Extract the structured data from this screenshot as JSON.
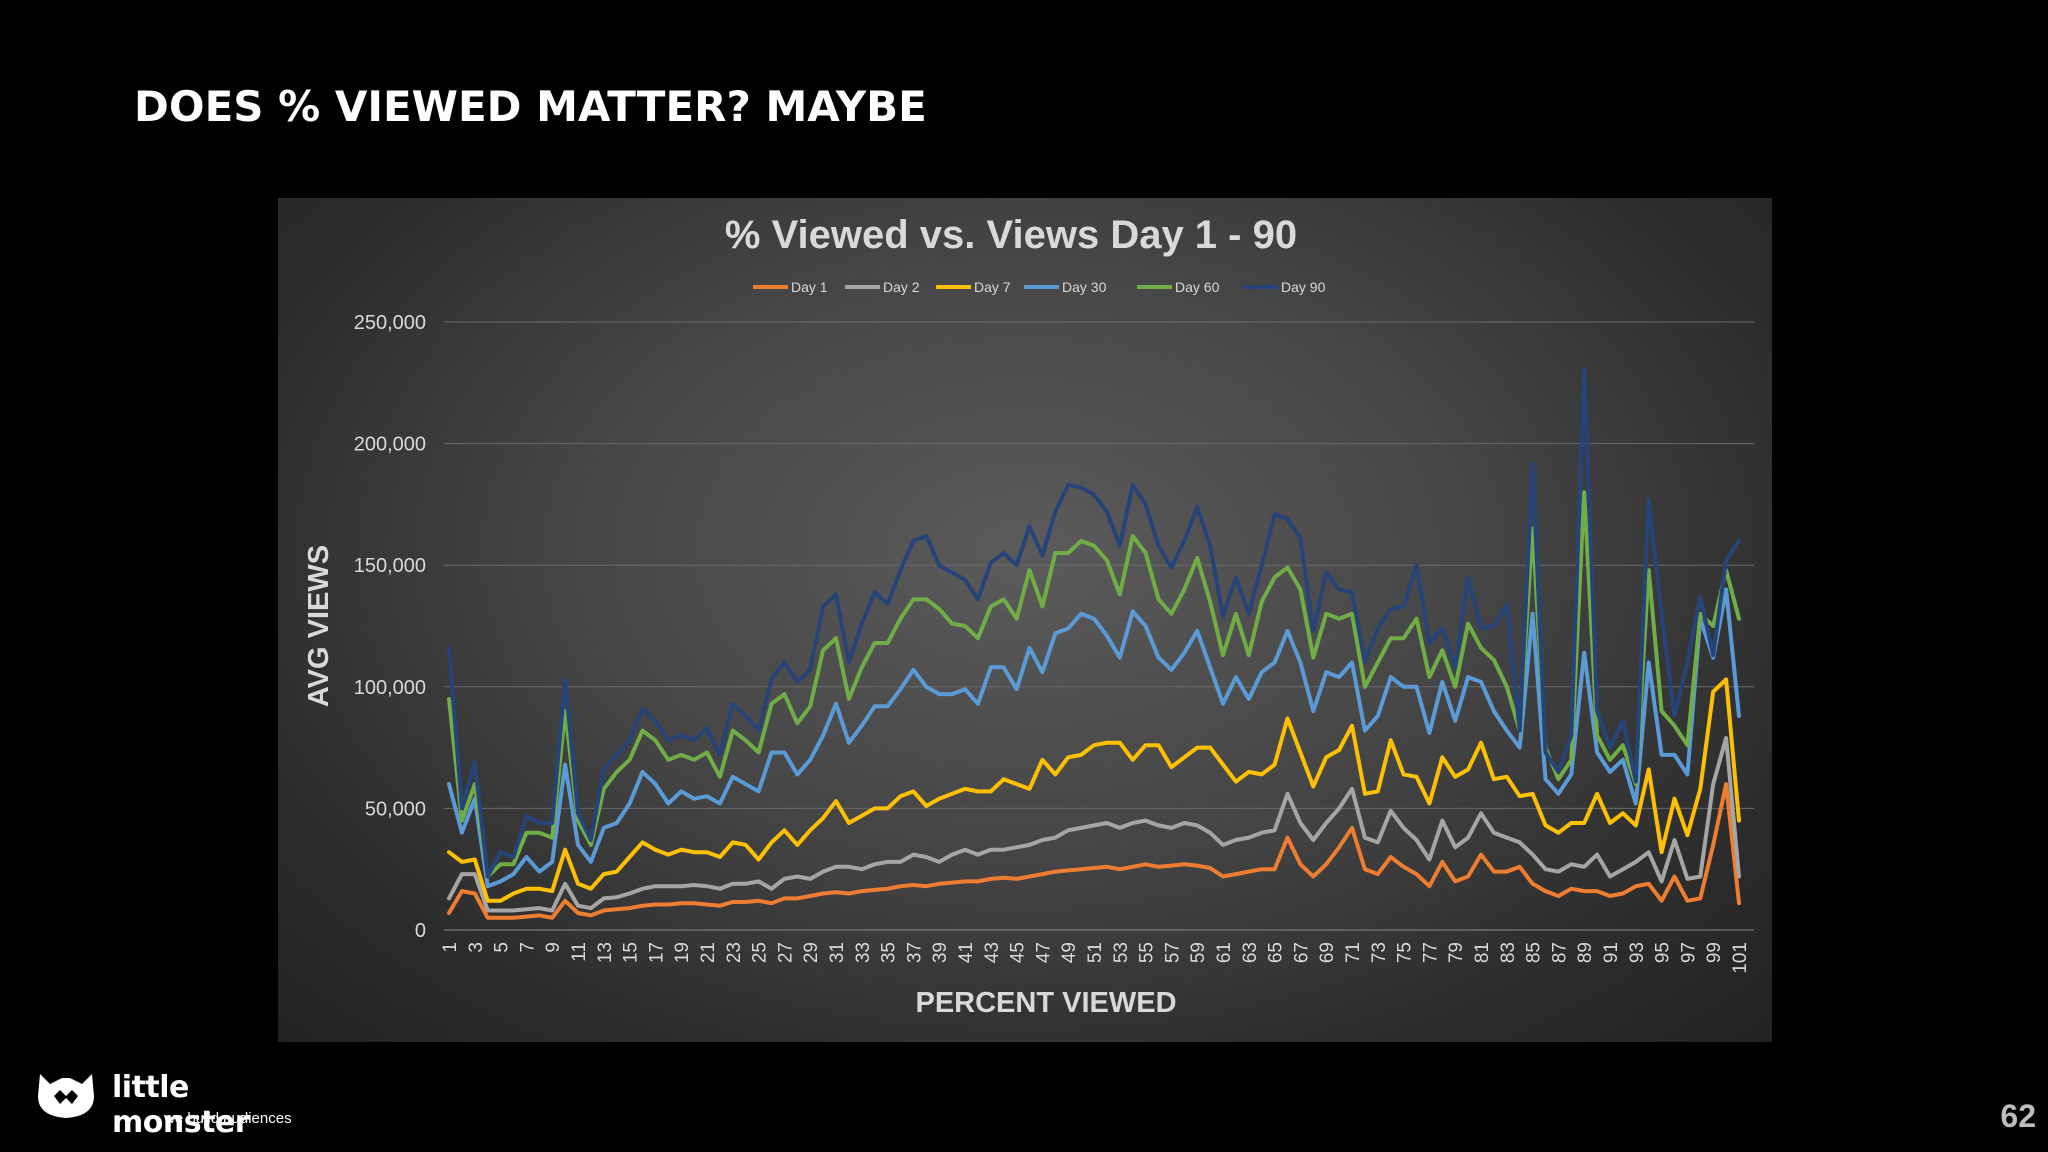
{
  "slide": {
    "title": "DOES % VIEWED MATTER? MAYBE",
    "page_number": "62"
  },
  "branding": {
    "name": "little monster",
    "tagline": "we build audiences"
  },
  "chart_data": {
    "type": "line",
    "title": "% Viewed vs. Views Day 1 - 90",
    "xlabel": "PERCENT VIEWED",
    "ylabel": "AVG VIEWS",
    "ylim": [
      0,
      250000
    ],
    "yticks": [
      0,
      50000,
      100000,
      150000,
      200000,
      250000
    ],
    "ytick_labels": [
      "0",
      "50,000",
      "100,000",
      "150,000",
      "200,000",
      "250,000"
    ],
    "x": [
      1,
      2,
      3,
      4,
      5,
      6,
      7,
      8,
      9,
      10,
      11,
      12,
      13,
      14,
      15,
      16,
      17,
      18,
      19,
      20,
      21,
      22,
      23,
      24,
      25,
      26,
      27,
      28,
      29,
      30,
      31,
      32,
      33,
      34,
      35,
      36,
      37,
      38,
      39,
      40,
      41,
      42,
      43,
      44,
      45,
      46,
      47,
      48,
      49,
      50,
      51,
      52,
      53,
      54,
      55,
      56,
      57,
      58,
      59,
      60,
      61,
      62,
      63,
      64,
      65,
      66,
      67,
      68,
      69,
      70,
      71,
      72,
      73,
      74,
      75,
      76,
      77,
      78,
      79,
      80,
      81,
      82,
      83,
      84,
      85,
      86,
      87,
      88,
      89,
      90,
      91,
      92,
      93,
      94,
      95,
      96,
      97,
      98,
      99,
      100,
      101
    ],
    "xtick_labels": [
      "1",
      "3",
      "5",
      "7",
      "9",
      "11",
      "13",
      "15",
      "17",
      "19",
      "21",
      "23",
      "25",
      "27",
      "29",
      "31",
      "33",
      "35",
      "37",
      "39",
      "41",
      "43",
      "45",
      "47",
      "49",
      "51",
      "53",
      "55",
      "57",
      "59",
      "61",
      "63",
      "65",
      "67",
      "69",
      "71",
      "73",
      "75",
      "77",
      "79",
      "81",
      "83",
      "85",
      "87",
      "89",
      "91",
      "93",
      "95",
      "97",
      "99",
      "101"
    ],
    "grid": true,
    "legend_position": "top",
    "series": [
      {
        "name": "Day 1",
        "color": "#ed7d31",
        "values": [
          7000,
          16000,
          15000,
          5000,
          5000,
          5000,
          5500,
          6000,
          5000,
          12000,
          7000,
          6000,
          8000,
          8500,
          9000,
          10000,
          10500,
          10500,
          11000,
          11000,
          10500,
          10000,
          11500,
          11500,
          12000,
          11000,
          13000,
          13000,
          14000,
          15000,
          15500,
          15000,
          16000,
          16500,
          17000,
          18000,
          18500,
          18000,
          19000,
          19500,
          20000,
          20000,
          21000,
          21500,
          21000,
          22000,
          23000,
          24000,
          24500,
          25000,
          25500,
          26000,
          25000,
          26000,
          27000,
          26000,
          26500,
          27000,
          26500,
          25500,
          22000,
          23000,
          24000,
          25000,
          25000,
          38000,
          27000,
          22000,
          27000,
          34000,
          42000,
          25000,
          23000,
          30000,
          26000,
          23000,
          18000,
          28000,
          20000,
          22000,
          31000,
          24000,
          24000,
          26000,
          19000,
          16000,
          14000,
          17000,
          16000,
          16000,
          14000,
          15000,
          18000,
          19000,
          12000,
          22000,
          12000,
          13000,
          35000,
          60000,
          11000
        ]
      },
      {
        "name": "Day 2",
        "color": "#a5a5a5",
        "values": [
          13000,
          23000,
          23000,
          8000,
          8000,
          8000,
          8500,
          9000,
          8000,
          19000,
          10000,
          9000,
          13000,
          13500,
          15000,
          17000,
          18000,
          18000,
          18000,
          18500,
          18000,
          17000,
          19000,
          19000,
          20000,
          17000,
          21000,
          22000,
          21000,
          24000,
          26000,
          26000,
          25000,
          27000,
          28000,
          28000,
          31000,
          30000,
          28000,
          31000,
          33000,
          31000,
          33000,
          33000,
          34000,
          35000,
          37000,
          38000,
          41000,
          42000,
          43000,
          44000,
          42000,
          44000,
          45000,
          43000,
          42000,
          44000,
          43000,
          40000,
          35000,
          37000,
          38000,
          40000,
          41000,
          56000,
          44000,
          37000,
          44000,
          50000,
          58000,
          38000,
          36000,
          49000,
          42000,
          37000,
          29000,
          45000,
          34000,
          38000,
          48000,
          40000,
          38000,
          36000,
          31000,
          25000,
          24000,
          27000,
          26000,
          31000,
          22000,
          25000,
          28000,
          32000,
          20000,
          37000,
          21000,
          22000,
          60000,
          79000,
          22000
        ]
      },
      {
        "name": "Day 7",
        "color": "#ffc000",
        "values": [
          32000,
          28000,
          29000,
          12000,
          12000,
          15000,
          17000,
          17000,
          16000,
          33000,
          19000,
          17000,
          23000,
          24000,
          30000,
          36000,
          33000,
          31000,
          33000,
          32000,
          32000,
          30000,
          36000,
          35000,
          29000,
          36000,
          41000,
          35000,
          41000,
          46000,
          53000,
          44000,
          47000,
          50000,
          50000,
          55000,
          57000,
          51000,
          54000,
          56000,
          58000,
          57000,
          57000,
          62000,
          60000,
          58000,
          70000,
          64000,
          71000,
          72000,
          76000,
          77000,
          77000,
          70000,
          76000,
          76000,
          67000,
          71000,
          75000,
          75000,
          68000,
          61000,
          65000,
          64000,
          68000,
          87000,
          73000,
          59000,
          71000,
          74000,
          84000,
          56000,
          57000,
          78000,
          64000,
          63000,
          52000,
          71000,
          63000,
          66000,
          77000,
          62000,
          63000,
          55000,
          56000,
          43000,
          40000,
          44000,
          44000,
          56000,
          44000,
          48000,
          43000,
          66000,
          32000,
          54000,
          39000,
          58000,
          98000,
          103000,
          45000
        ]
      },
      {
        "name": "Day 30",
        "color": "#5b9bd5",
        "values": [
          60000,
          40000,
          54000,
          18000,
          20000,
          23000,
          30000,
          24000,
          28000,
          68000,
          35000,
          28000,
          42000,
          44000,
          52000,
          65000,
          60000,
          52000,
          57000,
          54000,
          55000,
          52000,
          63000,
          60000,
          57000,
          73000,
          73000,
          64000,
          70000,
          80000,
          93000,
          77000,
          84000,
          92000,
          92000,
          99000,
          107000,
          100000,
          97000,
          97000,
          99000,
          93000,
          108000,
          108000,
          99000,
          116000,
          106000,
          122000,
          124000,
          130000,
          128000,
          121000,
          112000,
          131000,
          125000,
          112000,
          107000,
          114000,
          123000,
          108000,
          93000,
          104000,
          95000,
          106000,
          110000,
          123000,
          110000,
          90000,
          106000,
          104000,
          110000,
          82000,
          88000,
          104000,
          100000,
          100000,
          81000,
          102000,
          86000,
          104000,
          102000,
          90000,
          82000,
          75000,
          130000,
          62000,
          56000,
          64000,
          114000,
          73000,
          65000,
          70000,
          52000,
          110000,
          72000,
          72000,
          64000,
          128000,
          112000,
          140000,
          88000
        ]
      },
      {
        "name": "Day 60",
        "color": "#70ad47",
        "values": [
          95000,
          45000,
          60000,
          22000,
          27000,
          27000,
          40000,
          40000,
          38000,
          90000,
          45000,
          35000,
          58000,
          65000,
          70000,
          82000,
          78000,
          70000,
          72000,
          70000,
          73000,
          63000,
          82000,
          78000,
          73000,
          93000,
          97000,
          85000,
          92000,
          115000,
          120000,
          95000,
          108000,
          118000,
          118000,
          128000,
          136000,
          136000,
          132000,
          126000,
          125000,
          120000,
          133000,
          136000,
          128000,
          148000,
          133000,
          155000,
          155000,
          160000,
          158000,
          152000,
          138000,
          162000,
          155000,
          136000,
          130000,
          140000,
          153000,
          135000,
          113000,
          130000,
          113000,
          135000,
          145000,
          149000,
          140000,
          112000,
          130000,
          128000,
          130000,
          100000,
          110000,
          120000,
          120000,
          128000,
          104000,
          115000,
          100000,
          126000,
          116000,
          111000,
          100000,
          82000,
          165000,
          75000,
          62000,
          70000,
          180000,
          80000,
          70000,
          76000,
          60000,
          148000,
          90000,
          84000,
          76000,
          130000,
          125000,
          148000,
          128000
        ]
      },
      {
        "name": "Day 90",
        "color": "#264478",
        "values": [
          116000,
          50000,
          69000,
          22000,
          32000,
          30000,
          47000,
          44000,
          44000,
          103000,
          48000,
          37000,
          66000,
          72000,
          78000,
          91000,
          86000,
          78000,
          80000,
          78000,
          83000,
          72000,
          93000,
          88000,
          82000,
          103000,
          110000,
          102000,
          107000,
          133000,
          138000,
          110000,
          126000,
          139000,
          134000,
          148000,
          160000,
          162000,
          150000,
          147000,
          144000,
          136000,
          151000,
          155000,
          150000,
          166000,
          154000,
          172000,
          183000,
          182000,
          179000,
          172000,
          158000,
          183000,
          175000,
          158000,
          149000,
          160000,
          174000,
          158000,
          129000,
          145000,
          130000,
          150000,
          171000,
          169000,
          161000,
          123000,
          147000,
          140000,
          139000,
          110000,
          124000,
          132000,
          133000,
          150000,
          118000,
          124000,
          108000,
          145000,
          124000,
          125000,
          134000,
          82000,
          192000,
          73000,
          65000,
          80000,
          231000,
          90000,
          75000,
          86000,
          61000,
          177000,
          130000,
          88000,
          110000,
          137000,
          113000,
          152000,
          160000
        ]
      }
    ]
  }
}
